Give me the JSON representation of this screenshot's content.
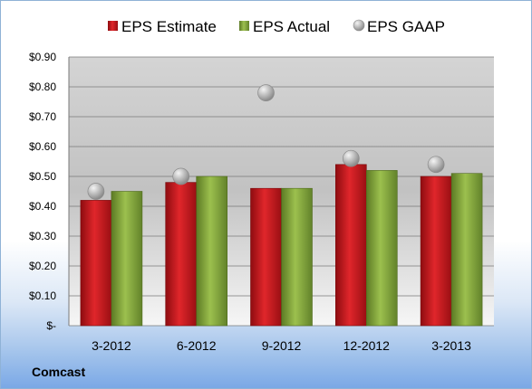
{
  "footer": {
    "company": "Comcast"
  },
  "chart_data": {
    "type": "bar",
    "categories": [
      "3-2012",
      "6-2012",
      "9-2012",
      "12-2012",
      "3-2013"
    ],
    "series": [
      {
        "name": "EPS Estimate",
        "kind": "bar",
        "color": "#c0151a",
        "values": [
          0.42,
          0.48,
          0.46,
          0.54,
          0.5
        ]
      },
      {
        "name": "EPS Actual",
        "kind": "bar",
        "color": "#7fa23a",
        "values": [
          0.45,
          0.5,
          0.46,
          0.52,
          0.51
        ]
      },
      {
        "name": "EPS GAAP",
        "kind": "scatter",
        "color": "#b8b8b8",
        "values": [
          0.45,
          0.5,
          0.78,
          0.56,
          0.54
        ]
      }
    ],
    "ylim": [
      0,
      0.9
    ],
    "yticks": [
      0,
      0.1,
      0.2,
      0.3,
      0.4,
      0.5,
      0.6,
      0.7,
      0.8,
      0.9
    ],
    "ytick_labels": [
      "$-",
      "$0.10",
      "$0.20",
      "$0.30",
      "$0.40",
      "$0.50",
      "$0.60",
      "$0.70",
      "$0.80",
      "$0.90"
    ],
    "grid": true,
    "legend_position": "top"
  }
}
